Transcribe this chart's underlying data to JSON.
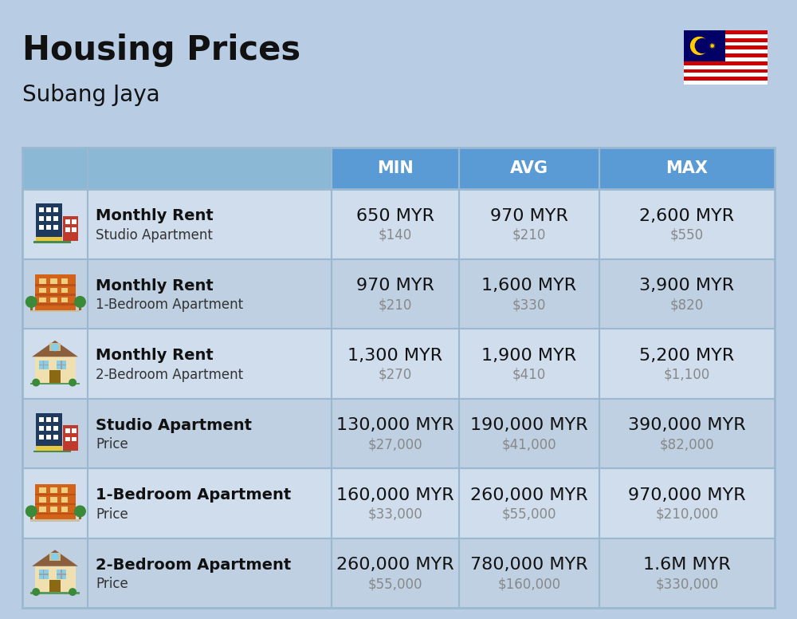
{
  "title": "Housing Prices",
  "subtitle": "Subang Jaya",
  "background_color": "#b8cce4",
  "header_bg_color": "#5b9bd5",
  "header_text_color": "#ffffff",
  "row_bg_light": "#cfdded",
  "row_bg_dark": "#bfd0e2",
  "col_divider_color": "#9ab8d0",
  "columns": [
    "MIN",
    "AVG",
    "MAX"
  ],
  "rows": [
    {
      "label_bold": "Monthly Rent",
      "label_sub": "Studio Apartment",
      "icon_type": "studio_blue",
      "min_myr": "650 MYR",
      "min_usd": "$140",
      "avg_myr": "970 MYR",
      "avg_usd": "$210",
      "max_myr": "2,600 MYR",
      "max_usd": "$550"
    },
    {
      "label_bold": "Monthly Rent",
      "label_sub": "1-Bedroom Apartment",
      "icon_type": "apartment_orange",
      "min_myr": "970 MYR",
      "min_usd": "$210",
      "avg_myr": "1,600 MYR",
      "avg_usd": "$330",
      "max_myr": "3,900 MYR",
      "max_usd": "$820"
    },
    {
      "label_bold": "Monthly Rent",
      "label_sub": "2-Bedroom Apartment",
      "icon_type": "house_tan",
      "min_myr": "1,300 MYR",
      "min_usd": "$270",
      "avg_myr": "1,900 MYR",
      "avg_usd": "$410",
      "max_myr": "5,200 MYR",
      "max_usd": "$1,100"
    },
    {
      "label_bold": "Studio Apartment",
      "label_sub": "Price",
      "icon_type": "studio_blue",
      "min_myr": "130,000 MYR",
      "min_usd": "$27,000",
      "avg_myr": "190,000 MYR",
      "avg_usd": "$41,000",
      "max_myr": "390,000 MYR",
      "max_usd": "$82,000"
    },
    {
      "label_bold": "1-Bedroom Apartment",
      "label_sub": "Price",
      "icon_type": "apartment_orange",
      "min_myr": "160,000 MYR",
      "min_usd": "$33,000",
      "avg_myr": "260,000 MYR",
      "avg_usd": "$55,000",
      "max_myr": "970,000 MYR",
      "max_usd": "$210,000"
    },
    {
      "label_bold": "2-Bedroom Apartment",
      "label_sub": "Price",
      "icon_type": "house_tan",
      "min_myr": "260,000 MYR",
      "min_usd": "$55,000",
      "avg_myr": "780,000 MYR",
      "avg_usd": "$160,000",
      "max_myr": "1.6M MYR",
      "max_usd": "$330,000"
    }
  ],
  "title_fontsize": 30,
  "subtitle_fontsize": 20,
  "header_fontsize": 15,
  "cell_myr_fontsize": 16,
  "cell_usd_fontsize": 12,
  "label_bold_fontsize": 14,
  "label_sub_fontsize": 12
}
